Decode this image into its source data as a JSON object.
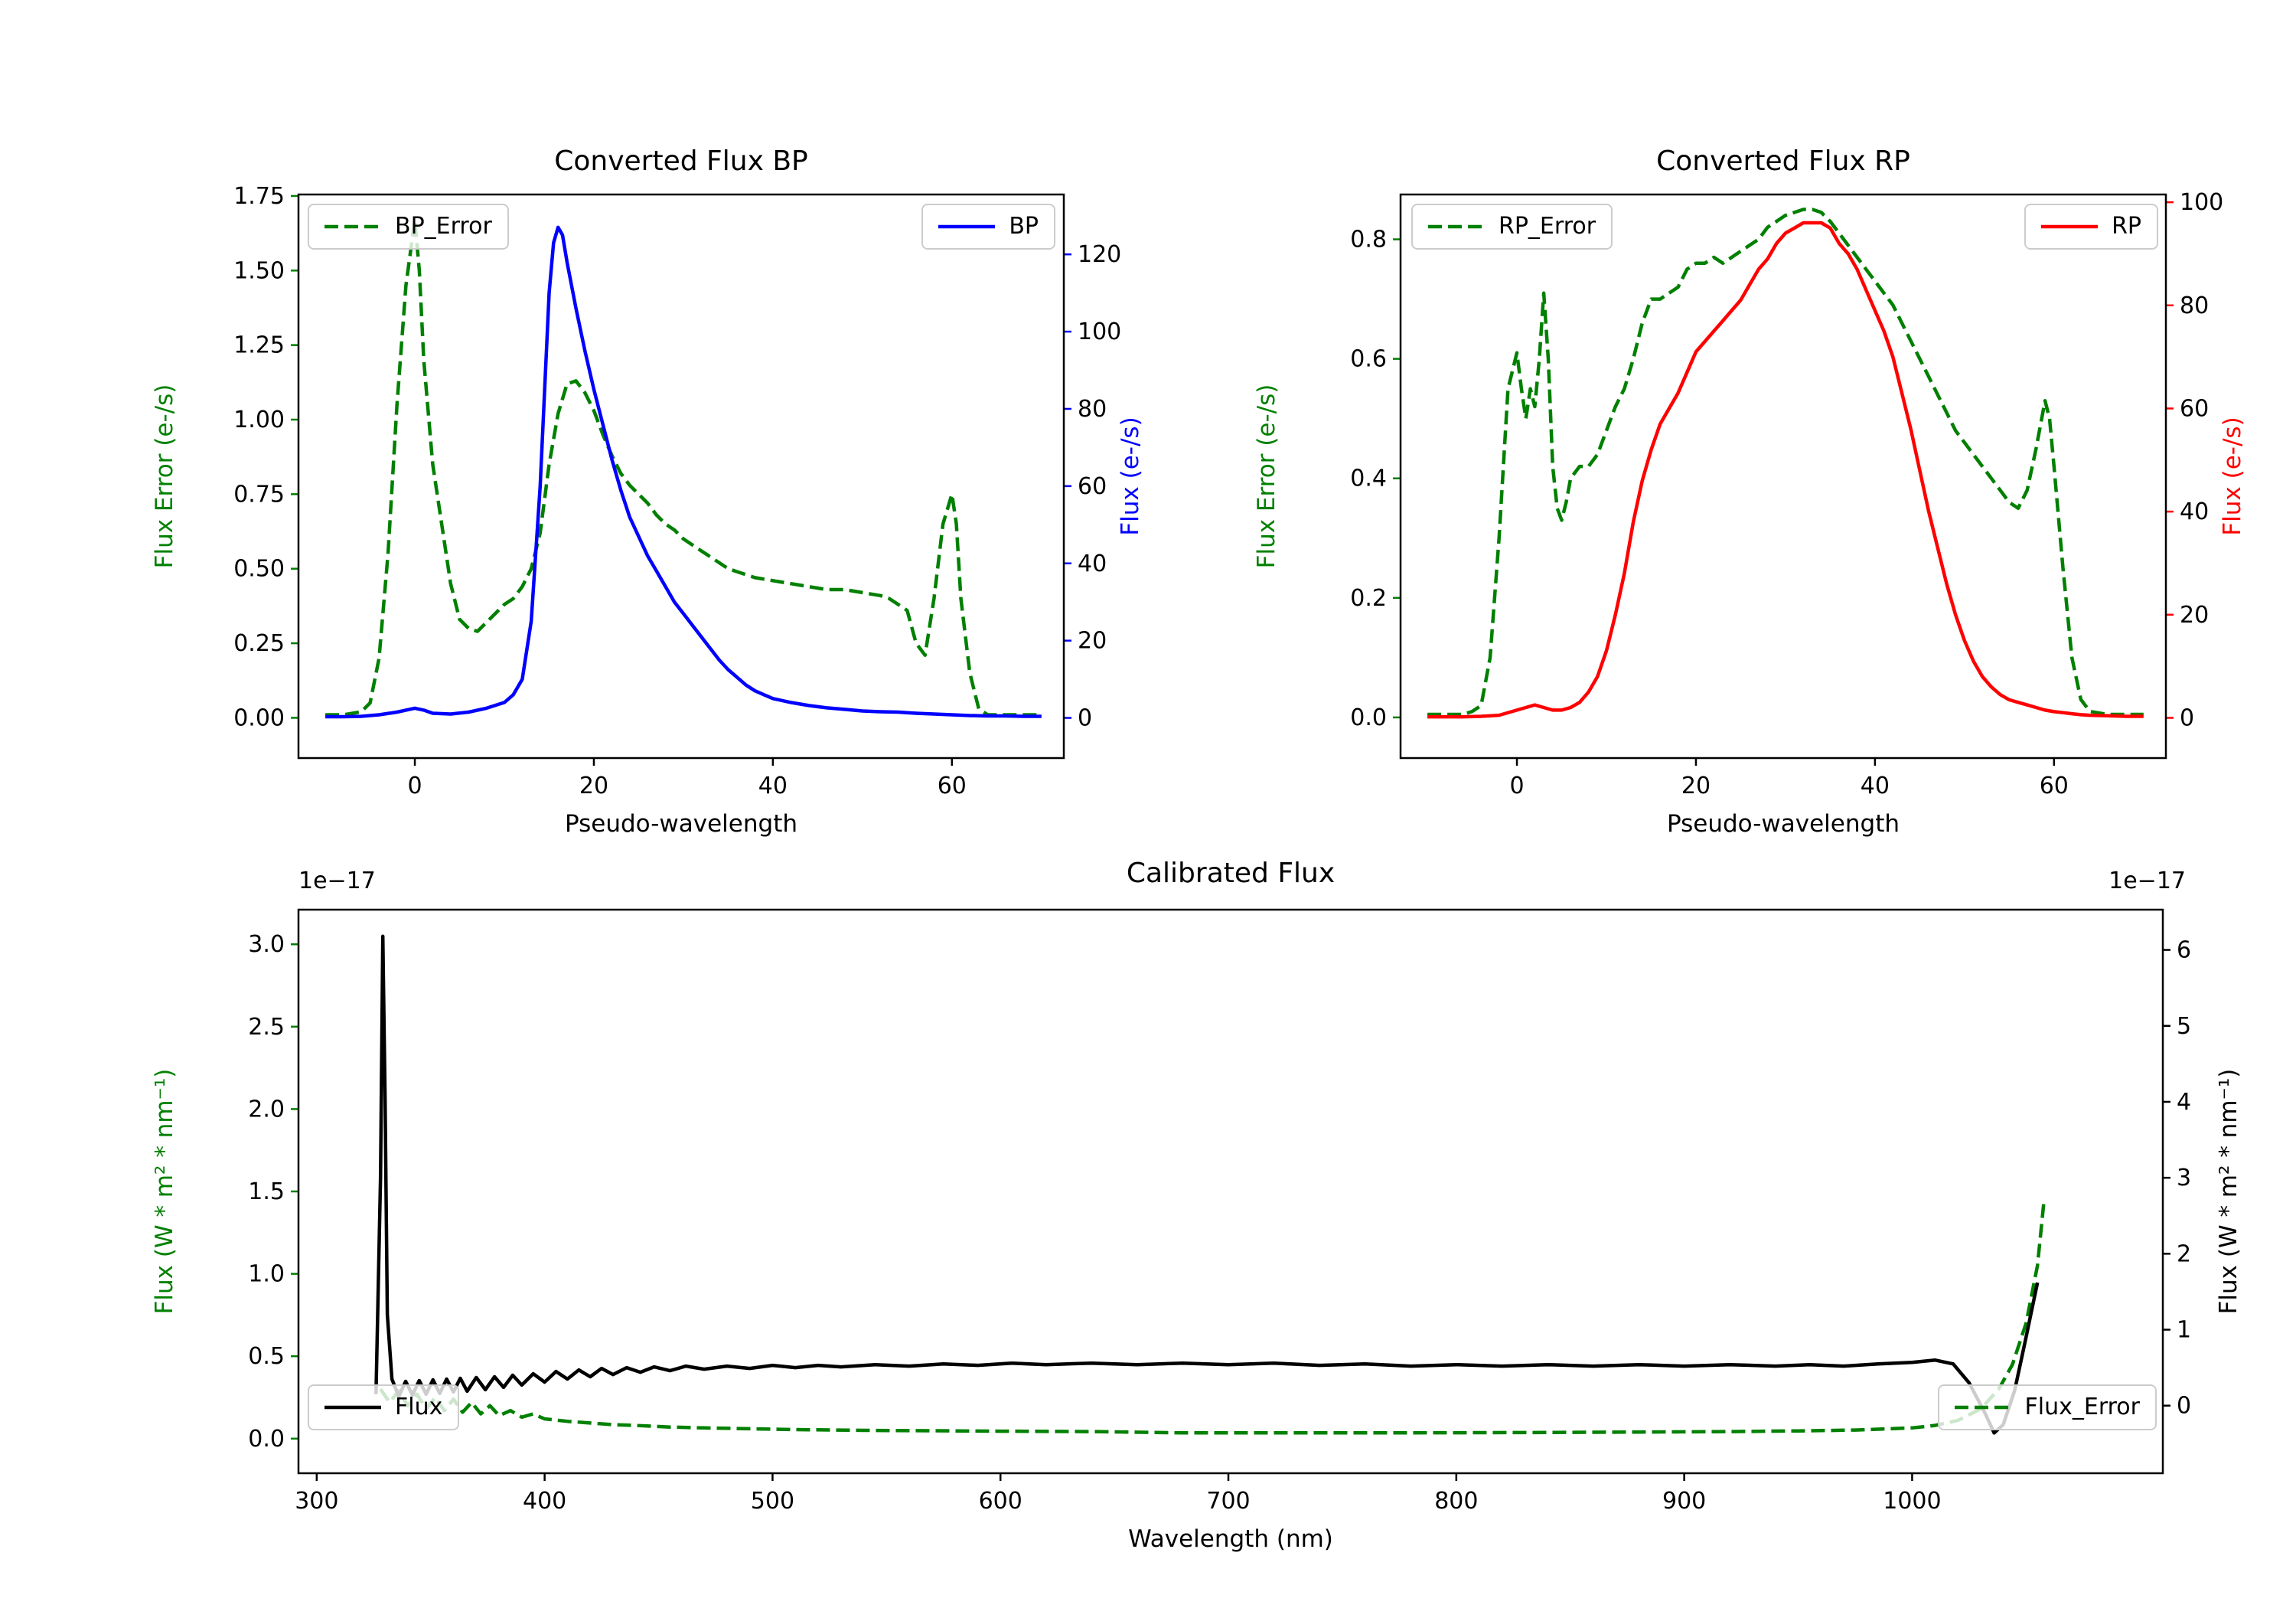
{
  "figure": {
    "background": "#ffffff"
  },
  "colors": {
    "error": "#008000",
    "bp": "#0000ff",
    "rp": "#ff0000",
    "flux": "#000000"
  },
  "chart_data": [
    {
      "id": "bp",
      "type": "line",
      "title": "Converted Flux BP",
      "xlabel": "Pseudo-wavelength",
      "ylabel_left": "Flux Error (e-/s)",
      "ylabel_right": "Flux (e-/s)",
      "legend_positions": [
        "upper left",
        "upper right"
      ],
      "x_axis": {
        "range": [
          -13,
          72.5
        ],
        "ticks": [
          0,
          20,
          40,
          60
        ],
        "tick_labels": [
          "0",
          "20",
          "40",
          "60"
        ],
        "color": "#000000"
      },
      "left_axis": {
        "range": [
          -0.135,
          1.755
        ],
        "ticks": [
          0,
          0.25,
          0.5,
          0.75,
          1.0,
          1.25,
          1.5,
          1.75
        ],
        "tick_labels": [
          "0.00",
          "0.25",
          "0.50",
          "0.75",
          "1.00",
          "1.25",
          "1.50",
          "1.75"
        ],
        "color": "#008000"
      },
      "right_axis": {
        "range": [
          -10.4,
          135.5
        ],
        "ticks": [
          0,
          20,
          40,
          60,
          80,
          100,
          120
        ],
        "tick_labels": [
          "0",
          "20",
          "40",
          "60",
          "80",
          "100",
          "120"
        ],
        "color": "#0000ff"
      },
      "series": [
        {
          "name": "BP_Error",
          "axis": "left",
          "color": "#008000",
          "style": "dashed",
          "x": [
            -10,
            -8,
            -6,
            -5,
            -4,
            -3,
            -2,
            -1,
            0,
            0.5,
            1,
            2,
            3,
            4,
            5,
            6,
            7,
            8,
            9,
            10,
            11,
            12,
            13,
            14,
            15,
            16,
            17,
            18,
            19,
            20,
            21,
            22,
            23,
            24,
            25,
            26,
            27,
            28,
            29,
            30,
            31,
            32,
            33,
            34,
            35,
            36,
            37,
            38,
            40,
            42,
            44,
            46,
            48,
            50,
            52,
            53,
            54,
            55,
            56,
            57,
            58,
            59,
            60,
            60.5,
            61,
            62,
            63,
            64,
            66,
            68,
            70
          ],
          "y": [
            0.01,
            0.01,
            0.02,
            0.05,
            0.2,
            0.55,
            1.05,
            1.45,
            1.67,
            1.5,
            1.2,
            0.85,
            0.65,
            0.45,
            0.33,
            0.3,
            0.29,
            0.32,
            0.35,
            0.38,
            0.4,
            0.44,
            0.5,
            0.62,
            0.85,
            1.02,
            1.12,
            1.13,
            1.09,
            1.03,
            0.95,
            0.88,
            0.82,
            0.78,
            0.75,
            0.72,
            0.68,
            0.65,
            0.63,
            0.6,
            0.58,
            0.56,
            0.54,
            0.52,
            0.5,
            0.49,
            0.48,
            0.47,
            0.46,
            0.45,
            0.44,
            0.43,
            0.43,
            0.42,
            0.41,
            0.4,
            0.38,
            0.36,
            0.25,
            0.21,
            0.4,
            0.65,
            0.75,
            0.65,
            0.4,
            0.15,
            0.03,
            0.01,
            0.01,
            0.01,
            0.01
          ]
        },
        {
          "name": "BP",
          "axis": "right",
          "color": "#0000ff",
          "style": "solid",
          "x": [
            -10,
            -8,
            -6,
            -4,
            -2,
            -1,
            0,
            1,
            2,
            4,
            6,
            8,
            10,
            11,
            12,
            13,
            14,
            15,
            15.5,
            16,
            16.5,
            17,
            18,
            19,
            20,
            21,
            22,
            23,
            24,
            25,
            26,
            27,
            28,
            29,
            30,
            31,
            32,
            33,
            34,
            35,
            36,
            37,
            38,
            39,
            40,
            42,
            44,
            46,
            48,
            50,
            52,
            54,
            56,
            58,
            60,
            62,
            64,
            66,
            68,
            70
          ],
          "y": [
            0.3,
            0.3,
            0.4,
            0.8,
            1.5,
            2.0,
            2.5,
            2.0,
            1.2,
            1.0,
            1.5,
            2.5,
            4,
            6,
            10,
            25,
            60,
            110,
            123,
            127,
            125,
            118,
            106,
            95,
            85,
            76,
            67,
            59,
            52,
            47,
            42,
            38,
            34,
            30,
            27,
            24,
            21,
            18,
            15,
            12.5,
            10.5,
            8.5,
            7,
            6,
            5,
            4,
            3.2,
            2.6,
            2.2,
            1.8,
            1.6,
            1.5,
            1.2,
            1.0,
            0.8,
            0.6,
            0.5,
            0.5,
            0.4,
            0.4
          ]
        }
      ]
    },
    {
      "id": "rp",
      "type": "line",
      "title": "Converted Flux RP",
      "xlabel": "Pseudo-wavelength",
      "ylabel_left": "Flux Error (e-/s)",
      "ylabel_right": "Flux (e-/s)",
      "legend_positions": [
        "upper left",
        "upper right"
      ],
      "x_axis": {
        "range": [
          -13,
          72.5
        ],
        "ticks": [
          0,
          20,
          40,
          60
        ],
        "tick_labels": [
          "0",
          "20",
          "40",
          "60"
        ],
        "color": "#000000"
      },
      "left_axis": {
        "range": [
          -0.068,
          0.875
        ],
        "ticks": [
          0,
          0.2,
          0.4,
          0.6,
          0.8
        ],
        "tick_labels": [
          "0.0",
          "0.2",
          "0.4",
          "0.6",
          "0.8"
        ],
        "color": "#008000"
      },
      "right_axis": {
        "range": [
          -7.8,
          101.5
        ],
        "ticks": [
          0,
          20,
          40,
          60,
          80,
          100
        ],
        "tick_labels": [
          "0",
          "20",
          "40",
          "60",
          "80",
          "100"
        ],
        "color": "#ff0000"
      },
      "series": [
        {
          "name": "RP_Error",
          "axis": "left",
          "color": "#008000",
          "style": "dashed",
          "x": [
            -10,
            -8,
            -6,
            -5,
            -4,
            -3,
            -2,
            -1,
            0,
            0.5,
            1,
            1.5,
            2,
            2.5,
            3,
            3.5,
            4,
            4.5,
            5,
            5.5,
            6,
            7,
            8,
            9,
            10,
            11,
            12,
            13,
            14,
            15,
            16,
            17,
            18,
            19,
            20,
            21,
            22,
            23,
            24,
            25,
            26,
            27,
            28,
            29,
            30,
            31,
            32,
            33,
            34,
            35,
            36,
            37,
            38,
            39,
            40,
            41,
            42,
            43,
            44,
            45,
            46,
            47,
            48,
            49,
            50,
            51,
            52,
            53,
            54,
            55,
            56,
            57,
            58,
            59,
            59.5,
            60,
            61,
            62,
            63,
            64,
            66,
            68,
            70
          ],
          "y": [
            0.005,
            0.005,
            0.005,
            0.01,
            0.02,
            0.1,
            0.3,
            0.55,
            0.61,
            0.55,
            0.5,
            0.55,
            0.52,
            0.6,
            0.71,
            0.6,
            0.42,
            0.35,
            0.33,
            0.36,
            0.4,
            0.42,
            0.42,
            0.44,
            0.48,
            0.52,
            0.55,
            0.6,
            0.66,
            0.7,
            0.7,
            0.71,
            0.72,
            0.75,
            0.76,
            0.76,
            0.77,
            0.76,
            0.77,
            0.78,
            0.79,
            0.8,
            0.82,
            0.83,
            0.84,
            0.845,
            0.85,
            0.85,
            0.845,
            0.83,
            0.81,
            0.79,
            0.77,
            0.75,
            0.73,
            0.71,
            0.69,
            0.66,
            0.63,
            0.6,
            0.57,
            0.54,
            0.51,
            0.48,
            0.46,
            0.44,
            0.42,
            0.4,
            0.38,
            0.36,
            0.35,
            0.38,
            0.45,
            0.53,
            0.5,
            0.42,
            0.25,
            0.1,
            0.03,
            0.01,
            0.005,
            0.005,
            0.005
          ]
        },
        {
          "name": "RP",
          "axis": "right",
          "color": "#ff0000",
          "style": "solid",
          "x": [
            -10,
            -8,
            -6,
            -4,
            -2,
            0,
            1,
            2,
            3,
            4,
            5,
            6,
            7,
            8,
            9,
            10,
            11,
            12,
            13,
            14,
            15,
            16,
            17,
            18,
            19,
            20,
            21,
            22,
            23,
            24,
            25,
            26,
            27,
            28,
            29,
            30,
            31,
            32,
            33,
            34,
            35,
            36,
            37,
            38,
            39,
            40,
            41,
            42,
            43,
            44,
            45,
            46,
            47,
            48,
            49,
            50,
            51,
            52,
            53,
            54,
            55,
            56,
            57,
            58,
            59,
            60,
            61,
            62,
            63,
            64,
            66,
            68,
            70
          ],
          "y": [
            0.2,
            0.2,
            0.2,
            0.3,
            0.5,
            1.5,
            2.0,
            2.5,
            2.0,
            1.5,
            1.5,
            2.0,
            3,
            5,
            8,
            13,
            20,
            28,
            38,
            46,
            52,
            57,
            60,
            63,
            67,
            71,
            73,
            75,
            77,
            79,
            81,
            84,
            87,
            89,
            92,
            94,
            95,
            96,
            96,
            96,
            95,
            92,
            90,
            87,
            83,
            79,
            75,
            70,
            63,
            56,
            48,
            40,
            33,
            26,
            20,
            15,
            11,
            8,
            6,
            4.5,
            3.5,
            3,
            2.5,
            2,
            1.5,
            1.2,
            1,
            0.8,
            0.6,
            0.5,
            0.4,
            0.3,
            0.3
          ]
        }
      ]
    },
    {
      "id": "cal",
      "type": "line",
      "title": "Calibrated Flux",
      "xlabel": "Wavelength (nm)",
      "ylabel_left": "Flux (W * m² * nm⁻¹)",
      "ylabel_right": "Flux (W * m² * nm⁻¹)",
      "offset_text_left": "1e−17",
      "offset_text_right": "1e−17",
      "legend_positions": [
        "lower left",
        "lower right"
      ],
      "x_axis": {
        "range": [
          292,
          1110
        ],
        "ticks": [
          300,
          400,
          500,
          600,
          700,
          800,
          900,
          1000
        ],
        "tick_labels": [
          "300",
          "400",
          "500",
          "600",
          "700",
          "800",
          "900",
          "1000"
        ],
        "color": "#000000"
      },
      "left_axis": {
        "range": [
          -0.21,
          3.21
        ],
        "ticks": [
          0,
          0.5,
          1.0,
          1.5,
          2.0,
          2.5,
          3.0
        ],
        "tick_labels": [
          "0.0",
          "0.5",
          "1.0",
          "1.5",
          "2.0",
          "2.5",
          "3.0"
        ],
        "color": "#008000"
      },
      "right_axis": {
        "range": [
          -0.89,
          6.53
        ],
        "ticks": [
          0,
          1,
          2,
          3,
          4,
          5,
          6
        ],
        "tick_labels": [
          "0",
          "1",
          "2",
          "3",
          "4",
          "5",
          "6"
        ],
        "color": "#000000"
      },
      "series": [
        {
          "name": "Flux_Error",
          "axis": "left",
          "color": "#008000",
          "style": "dashed",
          "x": [
            328,
            332,
            336,
            340,
            344,
            348,
            352,
            356,
            360,
            364,
            368,
            372,
            376,
            380,
            385,
            390,
            395,
            400,
            410,
            420,
            430,
            440,
            455,
            470,
            490,
            510,
            540,
            570,
            600,
            640,
            680,
            720,
            760,
            800,
            840,
            880,
            920,
            950,
            975,
            1000,
            1010,
            1020,
            1030,
            1038,
            1044,
            1050,
            1055,
            1058
          ],
          "y": [
            0.3,
            0.22,
            0.29,
            0.2,
            0.27,
            0.18,
            0.25,
            0.17,
            0.24,
            0.16,
            0.22,
            0.15,
            0.2,
            0.14,
            0.17,
            0.13,
            0.15,
            0.12,
            0.105,
            0.095,
            0.085,
            0.08,
            0.07,
            0.065,
            0.06,
            0.055,
            0.05,
            0.048,
            0.045,
            0.043,
            0.035,
            0.035,
            0.035,
            0.036,
            0.037,
            0.04,
            0.043,
            0.047,
            0.052,
            0.065,
            0.08,
            0.11,
            0.18,
            0.3,
            0.45,
            0.7,
            1.05,
            1.46
          ]
        },
        {
          "name": "Flux",
          "axis": "right",
          "color": "#000000",
          "style": "solid",
          "x": [
            326,
            328,
            329,
            330,
            331,
            333,
            336,
            339,
            342,
            345,
            348,
            351,
            354,
            357,
            360,
            363,
            366,
            370,
            374,
            378,
            382,
            386,
            390,
            395,
            400,
            405,
            410,
            415,
            420,
            425,
            430,
            436,
            442,
            448,
            455,
            462,
            470,
            480,
            490,
            500,
            510,
            520,
            530,
            545,
            560,
            575,
            590,
            605,
            620,
            640,
            660,
            680,
            700,
            720,
            740,
            760,
            780,
            800,
            820,
            840,
            860,
            880,
            900,
            920,
            940,
            955,
            970,
            985,
            1000,
            1010,
            1018,
            1025,
            1032,
            1036,
            1040,
            1045,
            1050,
            1055
          ],
          "y": [
            0.15,
            3.0,
            6.18,
            4.0,
            1.2,
            0.35,
            0.12,
            0.32,
            0.14,
            0.33,
            0.15,
            0.34,
            0.16,
            0.35,
            0.18,
            0.36,
            0.19,
            0.37,
            0.21,
            0.38,
            0.24,
            0.4,
            0.27,
            0.42,
            0.31,
            0.45,
            0.35,
            0.47,
            0.38,
            0.49,
            0.41,
            0.5,
            0.44,
            0.51,
            0.46,
            0.52,
            0.48,
            0.52,
            0.49,
            0.53,
            0.5,
            0.53,
            0.51,
            0.54,
            0.52,
            0.55,
            0.53,
            0.56,
            0.54,
            0.56,
            0.54,
            0.56,
            0.54,
            0.56,
            0.53,
            0.55,
            0.52,
            0.54,
            0.52,
            0.54,
            0.52,
            0.54,
            0.52,
            0.54,
            0.52,
            0.54,
            0.52,
            0.55,
            0.57,
            0.6,
            0.55,
            0.3,
            -0.1,
            -0.36,
            -0.25,
            0.2,
            0.9,
            1.62
          ]
        }
      ]
    }
  ]
}
